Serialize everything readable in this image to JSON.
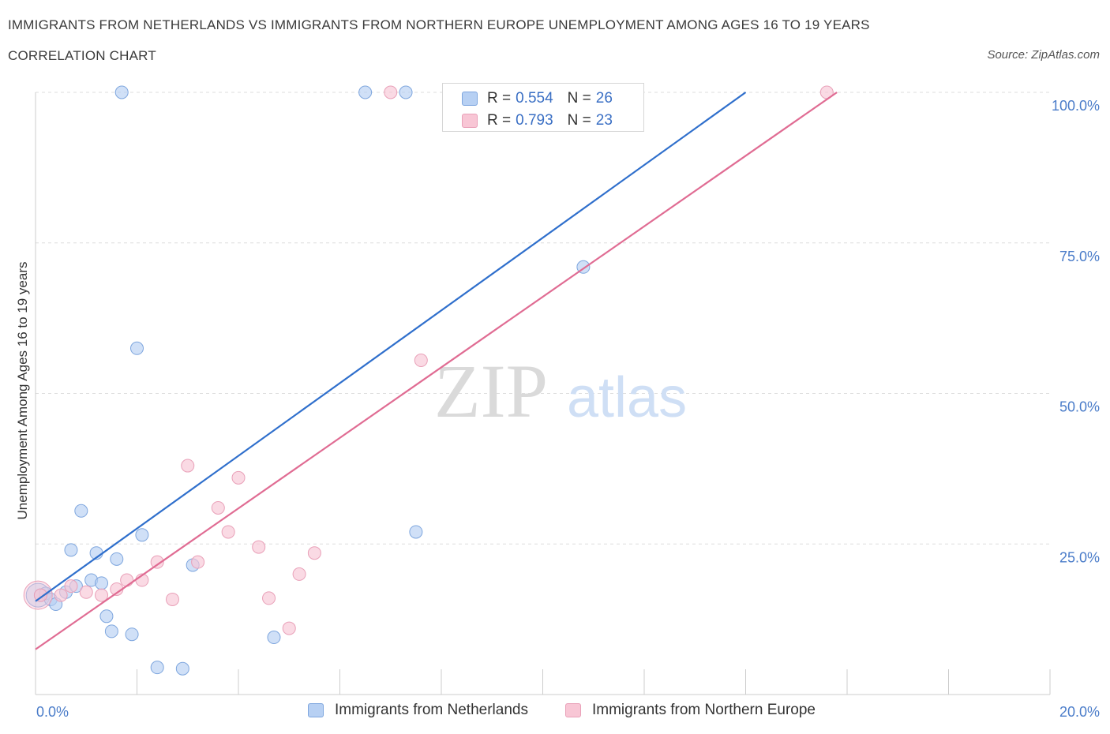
{
  "header": {
    "title": "IMMIGRANTS FROM NETHERLANDS VS IMMIGRANTS FROM NORTHERN EUROPE UNEMPLOYMENT AMONG AGES 16 TO 19 YEARS",
    "subtitle": "CORRELATION CHART",
    "source": "Source: ZipAtlas.com"
  },
  "watermark": {
    "zip": "ZIP",
    "atlas": "atlas"
  },
  "colors": {
    "blue_fill": "#b7d0f3",
    "blue_stroke": "#7ea6de",
    "blue_line": "#2f6fcc",
    "pink_fill": "#f8c6d5",
    "pink_stroke": "#e9a0b8",
    "pink_line": "#e06c93",
    "tick_text": "#4a7cc9"
  },
  "legend": {
    "rows": [
      {
        "r_label": "R =",
        "r_value": "0.554",
        "n_label": "N =",
        "n_value": "26"
      },
      {
        "r_label": "R =",
        "r_value": "0.793",
        "n_label": "N =",
        "n_value": "23"
      }
    ]
  },
  "bottom_legend": {
    "series1": "Immigrants from Netherlands",
    "series2": "Immigrants from Northern Europe"
  },
  "chart_data": {
    "type": "scatter",
    "title": "IMMIGRANTS FROM NETHERLANDS VS IMMIGRANTS FROM NORTHERN EUROPE UNEMPLOYMENT AMONG AGES 16 TO 19 YEARS",
    "subtitle": "CORRELATION CHART",
    "xlabel": "",
    "ylabel": "Unemployment Among Ages 16 to 19 years",
    "xlim": [
      0,
      20
    ],
    "ylim": [
      0,
      100
    ],
    "x_tick_labels": [
      "0.0%",
      "20.0%"
    ],
    "y_tick_labels": [
      {
        "value": 100,
        "label": "100.0%"
      },
      {
        "value": 75,
        "label": "75.0%"
      },
      {
        "value": 50,
        "label": "50.0%"
      },
      {
        "value": 25,
        "label": "25.0%"
      }
    ],
    "grid": true,
    "series": [
      {
        "name": "Immigrants from Netherlands",
        "color": "blue",
        "points": [
          [
            0.1,
            16.5
          ],
          [
            0.2,
            16.8
          ],
          [
            0.3,
            15.8
          ],
          [
            0.4,
            15.0
          ],
          [
            0.6,
            17.0
          ],
          [
            0.7,
            24.0
          ],
          [
            0.8,
            18.0
          ],
          [
            0.9,
            30.5
          ],
          [
            1.1,
            19.0
          ],
          [
            1.2,
            23.5
          ],
          [
            1.3,
            18.5
          ],
          [
            1.4,
            13.0
          ],
          [
            1.5,
            10.5
          ],
          [
            1.6,
            22.5
          ],
          [
            1.7,
            100.0
          ],
          [
            1.9,
            10.0
          ],
          [
            2.0,
            57.5
          ],
          [
            2.1,
            26.5
          ],
          [
            2.4,
            4.5
          ],
          [
            2.9,
            4.3
          ],
          [
            3.1,
            21.5
          ],
          [
            4.7,
            9.5
          ],
          [
            6.5,
            100.0
          ],
          [
            7.3,
            100.0
          ],
          [
            7.5,
            27.0
          ],
          [
            10.8,
            71.0
          ]
        ],
        "trend": {
          "x": [
            0.0,
            14.0
          ],
          "y": [
            15.5,
            100.0
          ]
        },
        "R": 0.554,
        "N": 26
      },
      {
        "name": "Immigrants from Northern Europe",
        "color": "pink",
        "points": [
          [
            0.1,
            16.5
          ],
          [
            0.5,
            16.5
          ],
          [
            0.7,
            18.0
          ],
          [
            1.0,
            17.0
          ],
          [
            1.3,
            16.5
          ],
          [
            1.6,
            17.5
          ],
          [
            1.8,
            19.0
          ],
          [
            2.1,
            19.0
          ],
          [
            2.4,
            22.0
          ],
          [
            2.7,
            15.8
          ],
          [
            3.0,
            38.0
          ],
          [
            3.2,
            22.0
          ],
          [
            3.6,
            31.0
          ],
          [
            3.8,
            27.0
          ],
          [
            4.0,
            36.0
          ],
          [
            4.4,
            24.5
          ],
          [
            4.6,
            16.0
          ],
          [
            5.0,
            11.0
          ],
          [
            5.2,
            20.0
          ],
          [
            5.5,
            23.5
          ],
          [
            7.0,
            100.0
          ],
          [
            7.6,
            55.5
          ],
          [
            15.6,
            100.0
          ]
        ],
        "trend": {
          "x": [
            0.0,
            15.8
          ],
          "y": [
            7.5,
            100.0
          ]
        },
        "R": 0.793,
        "N": 23
      }
    ]
  }
}
